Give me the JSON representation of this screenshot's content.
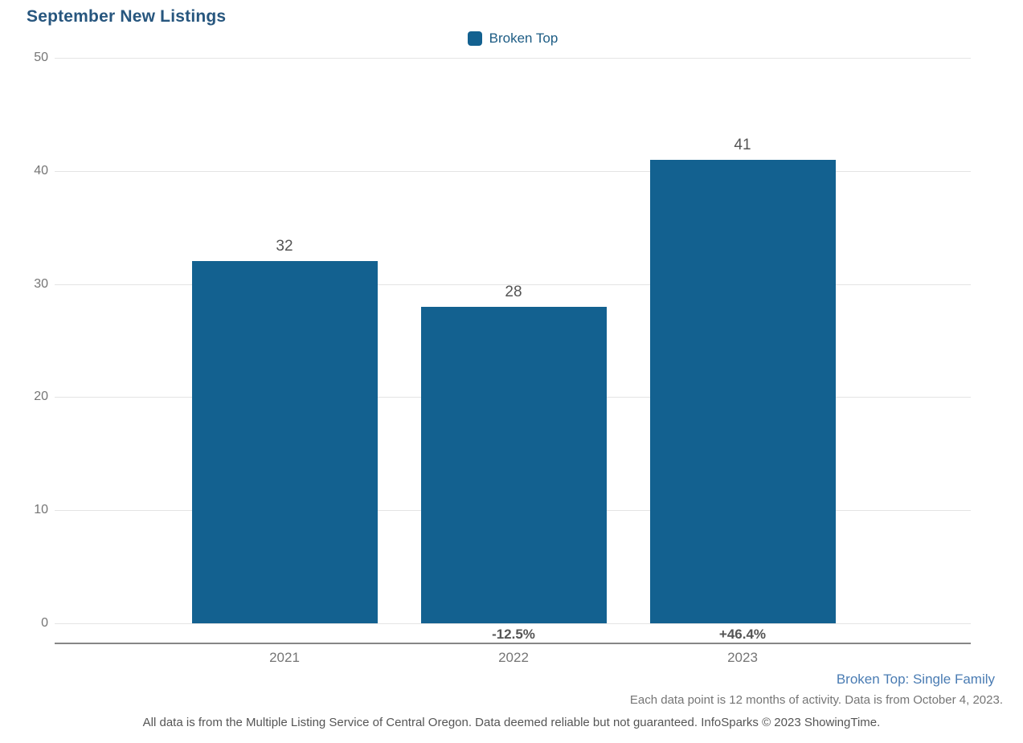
{
  "title": "September New Listings",
  "legend": {
    "label": "Broken Top",
    "swatch_color": "#136190"
  },
  "chart_data": {
    "type": "bar",
    "title": "September New Listings",
    "categories": [
      "2021",
      "2022",
      "2023"
    ],
    "series": [
      {
        "name": "Broken Top",
        "values": [
          32,
          28,
          41
        ],
        "color": "#136190"
      }
    ],
    "value_labels": [
      "32",
      "28",
      "41"
    ],
    "pct_change_labels": [
      "",
      "-12.5%",
      "+46.4%"
    ],
    "xlabel": "",
    "ylabel": "",
    "ylim": [
      0,
      50
    ],
    "ytick_step": 10,
    "grid": true,
    "legend_position": "top-center"
  },
  "footer": {
    "series_note": "Broken Top: Single Family",
    "data_note": "Each data point is 12 months of activity. Data is from October 4, 2023.",
    "disclaimer": "All data is from the Multiple Listing Service of Central Oregon. Data deemed reliable but not guaranteed. InfoSparks © 2023 ShowingTime."
  },
  "colors": {
    "bar": "#136190",
    "title_text": "#27567e",
    "legend_text": "#1d5c84",
    "axis_line": "#868686",
    "gridline": "#e4e4e4",
    "tick_text": "#757575",
    "value_text": "#555555",
    "series_note_text": "#4a7cb3"
  }
}
